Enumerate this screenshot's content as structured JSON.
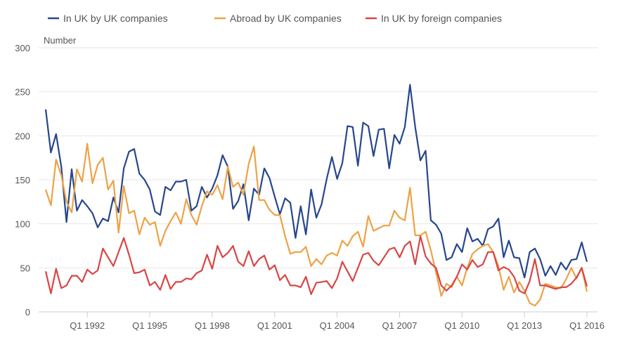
{
  "chart_data": {
    "type": "line",
    "title": "",
    "ylabel": "Number",
    "xlabel": "",
    "ylim": [
      0,
      300
    ],
    "yticks": [
      0,
      50,
      100,
      150,
      200,
      250,
      300
    ],
    "x_start": "Q1 1990",
    "x_end": "Q1 2016",
    "xticks": [
      {
        "index": 8,
        "label": "Q1 1992"
      },
      {
        "index": 20,
        "label": "Q1 1995"
      },
      {
        "index": 32,
        "label": "Q1 1998"
      },
      {
        "index": 44,
        "label": "Q1 2001"
      },
      {
        "index": 56,
        "label": "Q1 2004"
      },
      {
        "index": 68,
        "label": "Q1 2007"
      },
      {
        "index": 80,
        "label": "Q1 2010"
      },
      {
        "index": 92,
        "label": "Q1 2013"
      },
      {
        "index": 104,
        "label": "Q1 2016"
      }
    ],
    "grid": true,
    "legend_position": "top",
    "series": [
      {
        "name": "In UK by UK companies",
        "color": "#27468b",
        "values": [
          230,
          181,
          202,
          165,
          102,
          162,
          115,
          127,
          120,
          112,
          96,
          106,
          103,
          130,
          113,
          163,
          182,
          185,
          157,
          150,
          139,
          114,
          110,
          142,
          138,
          148,
          148,
          150,
          115,
          120,
          142,
          130,
          140,
          155,
          178,
          165,
          117,
          126,
          145,
          104,
          140,
          133,
          163,
          152,
          131,
          111,
          129,
          124,
          84,
          120,
          88,
          139,
          107,
          122,
          151,
          176,
          151,
          169,
          211,
          210,
          166,
          215,
          211,
          177,
          207,
          208,
          163,
          201,
          191,
          210,
          258,
          210,
          172,
          183,
          104,
          99,
          89,
          59,
          62,
          77,
          68,
          95,
          80,
          83,
          75,
          94,
          97,
          106,
          62,
          81,
          62,
          61,
          39,
          68,
          72,
          60,
          41,
          52,
          42,
          56,
          48,
          59,
          60,
          79,
          57
        ]
      },
      {
        "name": "Abroad by UK companies",
        "color": "#eea246",
        "values": [
          139,
          121,
          173,
          155,
          125,
          113,
          162,
          148,
          191,
          146,
          167,
          175,
          139,
          149,
          90,
          143,
          112,
          115,
          88,
          107,
          99,
          102,
          75,
          92,
          103,
          113,
          100,
          128,
          110,
          99,
          120,
          137,
          133,
          144,
          128,
          165,
          142,
          147,
          133,
          168,
          188,
          127,
          127,
          116,
          110,
          110,
          86,
          66,
          68,
          68,
          74,
          52,
          60,
          54,
          64,
          67,
          64,
          81,
          75,
          86,
          91,
          74,
          109,
          92,
          95,
          98,
          98,
          115,
          107,
          104,
          141,
          87,
          87,
          91,
          70,
          45,
          18,
          32,
          28,
          40,
          30,
          50,
          66,
          71,
          75,
          77,
          68,
          52,
          25,
          40,
          22,
          34,
          24,
          10,
          7,
          14,
          32,
          30,
          28,
          27,
          37,
          50,
          38,
          50,
          23
        ]
      },
      {
        "name": "In UK by foreign companies",
        "color": "#d94545",
        "values": [
          46,
          21,
          49,
          27,
          30,
          41,
          41,
          34,
          48,
          43,
          47,
          72,
          62,
          52,
          68,
          84,
          65,
          44,
          45,
          48,
          30,
          34,
          25,
          42,
          26,
          34,
          34,
          38,
          37,
          44,
          47,
          65,
          49,
          75,
          62,
          67,
          75,
          57,
          52,
          69,
          52,
          60,
          64,
          48,
          53,
          36,
          42,
          30,
          30,
          28,
          40,
          20,
          33,
          34,
          35,
          27,
          38,
          57,
          46,
          35,
          50,
          65,
          67,
          58,
          53,
          62,
          71,
          73,
          62,
          75,
          80,
          54,
          86,
          63,
          55,
          50,
          30,
          24,
          30,
          40,
          54,
          48,
          59,
          51,
          54,
          68,
          68,
          47,
          51,
          48,
          40,
          24,
          21,
          35,
          60,
          30,
          30,
          28,
          26,
          28,
          28,
          32,
          39,
          50,
          29
        ]
      }
    ]
  }
}
